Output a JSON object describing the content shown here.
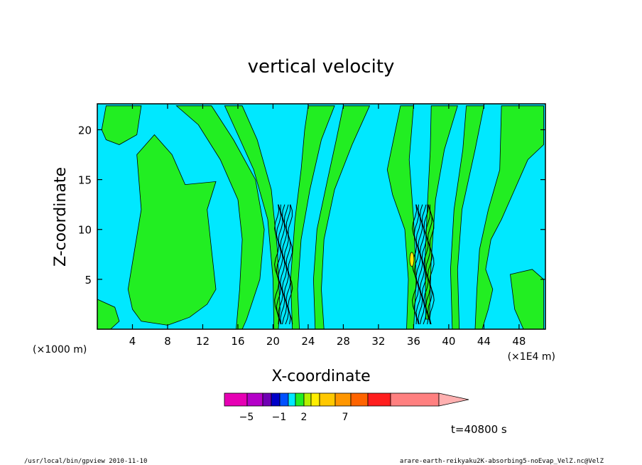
{
  "chart_data": {
    "type": "contour",
    "title": "vertical velocity",
    "xlabel": "X-coordinate",
    "ylabel": "Z-coordinate",
    "x_units_left": "(×1000 m)",
    "x_units_right": "(×1E4 m)",
    "x_ticks": [
      4,
      8,
      12,
      16,
      20,
      24,
      28,
      32,
      36,
      40,
      44,
      48
    ],
    "y_ticks": [
      5,
      10,
      15,
      20
    ],
    "xlim": [
      0,
      51
    ],
    "ylim": [
      0,
      22.6
    ],
    "colors": {
      "positive_fill": "#22ee22",
      "negative_fill": "#00e8ff",
      "updraft_core": "#ffee00",
      "contour_line": "#000000"
    },
    "colorbar": {
      "segments": [
        {
          "color": "#e600b4"
        },
        {
          "color": "#b400c8"
        },
        {
          "color": "#7000b4"
        },
        {
          "color": "#0000c8"
        },
        {
          "color": "#0050ff"
        },
        {
          "color": "#00e8ff"
        },
        {
          "color": "#22ee22"
        },
        {
          "color": "#b4f000"
        },
        {
          "color": "#ffee00"
        },
        {
          "color": "#ffc800"
        },
        {
          "color": "#ff9600"
        },
        {
          "color": "#ff6400"
        },
        {
          "color": "#ff1e1e"
        },
        {
          "color": "#ff8080"
        }
      ],
      "labels": [
        "−5",
        "−1",
        "2",
        "7"
      ]
    },
    "time_label": "t=40800 s"
  },
  "footer": {
    "left": "/usr/local/bin/gpview  2010-11-10",
    "right": "arare-earth-reikyaku2K-absorbing5-noEvap_VelZ.nc@VelZ"
  }
}
